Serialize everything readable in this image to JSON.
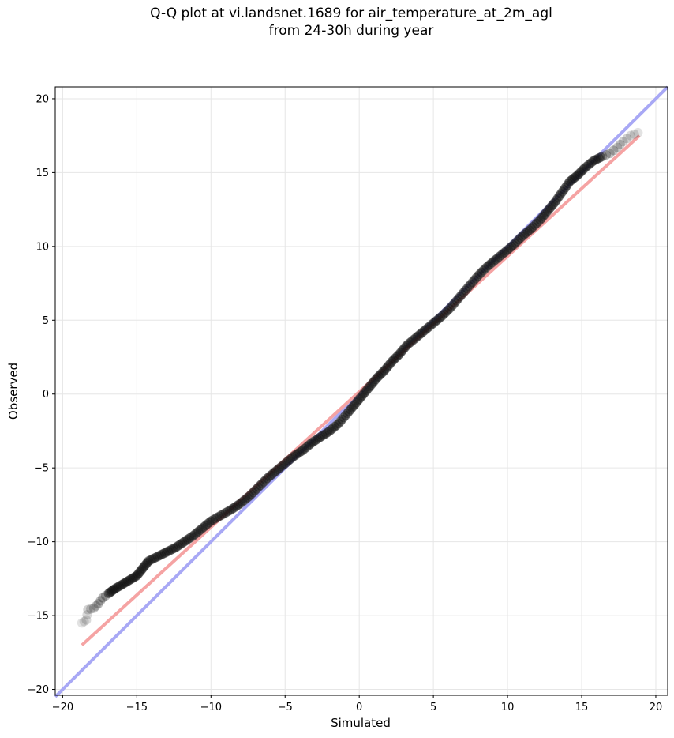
{
  "chart_data": {
    "type": "scatter",
    "title_line1": "Q-Q plot at vi.landsnet.1689 for air_temperature_at_2m_agl",
    "title_line2": "from 24-30h during year",
    "xlabel": "Simulated",
    "ylabel": "Observed",
    "xlim": [
      -20.5,
      20.8
    ],
    "ylim": [
      -20.4,
      20.8
    ],
    "xticks": [
      -20,
      -15,
      -10,
      -5,
      0,
      5,
      10,
      15,
      20
    ],
    "yticks": [
      -20,
      -15,
      -10,
      -5,
      0,
      5,
      10,
      15,
      20
    ],
    "tick_labels": [
      "−20",
      "−15",
      "−10",
      "−5",
      "0",
      "5",
      "10",
      "15",
      "20"
    ],
    "grid": true,
    "quantile_points": [
      {
        "x": -18.7,
        "y": -15.5
      },
      {
        "x": -18.4,
        "y": -15.3
      },
      {
        "x": -18.3,
        "y": -14.6
      },
      {
        "x": -17.9,
        "y": -14.5
      },
      {
        "x": -17.6,
        "y": -14.2
      },
      {
        "x": -17.3,
        "y": -13.8
      },
      {
        "x": -16.9,
        "y": -13.5
      },
      {
        "x": -16.5,
        "y": -13.2
      },
      {
        "x": -16.0,
        "y": -12.9
      },
      {
        "x": -15.5,
        "y": -12.6
      },
      {
        "x": -15.0,
        "y": -12.3
      },
      {
        "x": -14.6,
        "y": -11.8
      },
      {
        "x": -14.2,
        "y": -11.3
      },
      {
        "x": -13.6,
        "y": -11.0
      },
      {
        "x": -13.0,
        "y": -10.7
      },
      {
        "x": -12.4,
        "y": -10.4
      },
      {
        "x": -11.8,
        "y": -10.0
      },
      {
        "x": -11.2,
        "y": -9.6
      },
      {
        "x": -10.6,
        "y": -9.1
      },
      {
        "x": -10.0,
        "y": -8.6
      },
      {
        "x": -9.3,
        "y": -8.2
      },
      {
        "x": -8.6,
        "y": -7.8
      },
      {
        "x": -8.0,
        "y": -7.4
      },
      {
        "x": -7.4,
        "y": -6.9
      },
      {
        "x": -6.8,
        "y": -6.3
      },
      {
        "x": -6.2,
        "y": -5.7
      },
      {
        "x": -5.6,
        "y": -5.2
      },
      {
        "x": -5.0,
        "y": -4.7
      },
      {
        "x": -4.4,
        "y": -4.2
      },
      {
        "x": -3.8,
        "y": -3.8
      },
      {
        "x": -3.2,
        "y": -3.3
      },
      {
        "x": -2.6,
        "y": -2.9
      },
      {
        "x": -2.0,
        "y": -2.5
      },
      {
        "x": -1.4,
        "y": -2.0
      },
      {
        "x": -0.8,
        "y": -1.3
      },
      {
        "x": -0.3,
        "y": -0.7
      },
      {
        "x": 0.2,
        "y": -0.1
      },
      {
        "x": 0.7,
        "y": 0.5
      },
      {
        "x": 1.2,
        "y": 1.1
      },
      {
        "x": 1.7,
        "y": 1.6
      },
      {
        "x": 2.2,
        "y": 2.2
      },
      {
        "x": 2.7,
        "y": 2.7
      },
      {
        "x": 3.2,
        "y": 3.3
      },
      {
        "x": 3.8,
        "y": 3.8
      },
      {
        "x": 4.4,
        "y": 4.3
      },
      {
        "x": 5.0,
        "y": 4.8
      },
      {
        "x": 5.6,
        "y": 5.3
      },
      {
        "x": 6.2,
        "y": 5.9
      },
      {
        "x": 6.8,
        "y": 6.6
      },
      {
        "x": 7.4,
        "y": 7.3
      },
      {
        "x": 8.0,
        "y": 8.0
      },
      {
        "x": 8.6,
        "y": 8.6
      },
      {
        "x": 9.2,
        "y": 9.1
      },
      {
        "x": 9.8,
        "y": 9.6
      },
      {
        "x": 10.4,
        "y": 10.1
      },
      {
        "x": 11.0,
        "y": 10.7
      },
      {
        "x": 11.6,
        "y": 11.2
      },
      {
        "x": 12.2,
        "y": 11.8
      },
      {
        "x": 12.7,
        "y": 12.4
      },
      {
        "x": 13.2,
        "y": 13.0
      },
      {
        "x": 13.7,
        "y": 13.7
      },
      {
        "x": 14.2,
        "y": 14.4
      },
      {
        "x": 14.7,
        "y": 14.8
      },
      {
        "x": 15.2,
        "y": 15.3
      },
      {
        "x": 15.8,
        "y": 15.8
      },
      {
        "x": 16.4,
        "y": 16.1
      },
      {
        "x": 16.9,
        "y": 16.3
      },
      {
        "x": 17.4,
        "y": 16.7
      },
      {
        "x": 17.8,
        "y": 17.1
      },
      {
        "x": 18.3,
        "y": 17.5
      },
      {
        "x": 18.8,
        "y": 17.7
      }
    ],
    "fit_line": {
      "x": [
        -18.7,
        18.9
      ],
      "y": [
        -17.0,
        17.5
      ],
      "color": "#f5a3a3"
    },
    "identity_line": {
      "x": [
        -20.5,
        20.8
      ],
      "y": [
        -20.5,
        20.8
      ],
      "color": "#a8a8f5"
    }
  }
}
